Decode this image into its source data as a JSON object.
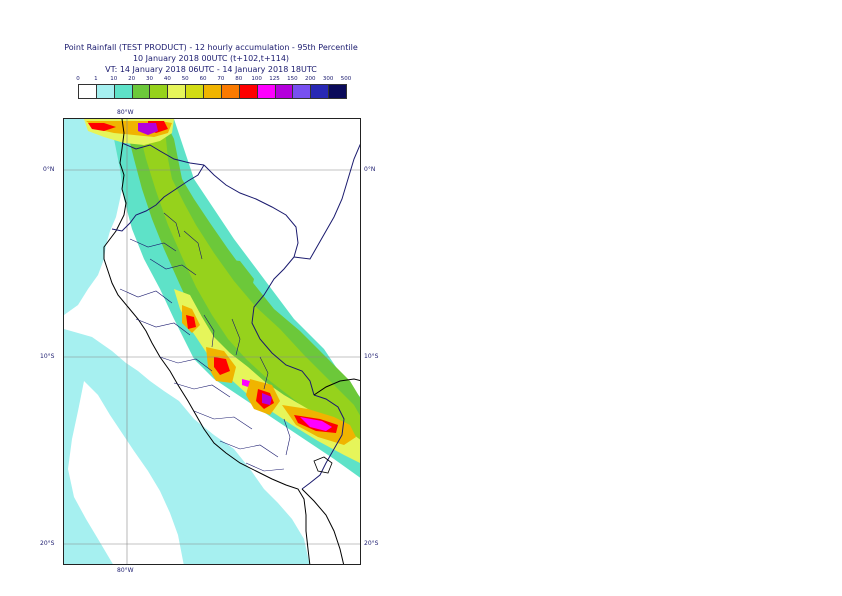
{
  "header": {
    "title_line1": "Point Rainfall (TEST PRODUCT) - 12 hourly accumulation - 95th Percentile",
    "title_line2": "10 January 2018 00UTC (t+102,t+114)",
    "title_line3": "VT: 14 January 2018 06UTC - 14 January 2018 18UTC"
  },
  "legend": {
    "thresholds": [
      "0",
      "1",
      "10",
      "20",
      "30",
      "40",
      "50",
      "60",
      "70",
      "80",
      "100",
      "125",
      "150",
      "200",
      "300",
      "500"
    ],
    "colors": [
      "#ffffff",
      "#a6f0f0",
      "#5ee2c8",
      "#6cc83a",
      "#96d21c",
      "#e6f55a",
      "#d2dc14",
      "#f0b400",
      "#fa7a00",
      "#ff0000",
      "#ff00ff",
      "#b400dc",
      "#7850f0",
      "#2828b4",
      "#0a0a5a"
    ]
  },
  "map": {
    "coord_labels": {
      "lon_top": "80°W",
      "lon_bottom": "80°W",
      "lat_0_left": "0°N",
      "lat_0_right": "0°N",
      "lat_10_left": "10°S",
      "lat_10_right": "10°S",
      "lat_20_left": "20°S",
      "lat_20_right": "20°S"
    },
    "colors": {
      "background": "#ffffff",
      "light_cyan": "#a6f0f0",
      "teal": "#5ee2c8",
      "green": "#6cc83a",
      "yellow_green": "#96d21c",
      "yellow": "#e6f55a",
      "orange": "#f0b400",
      "dark_orange": "#fa7a00",
      "red": "#ff0000",
      "magenta": "#ff00ff",
      "purple": "#b400dc",
      "border_line": "#1a1a6e",
      "coast_line": "#000000",
      "grid_line": "#888888"
    }
  }
}
